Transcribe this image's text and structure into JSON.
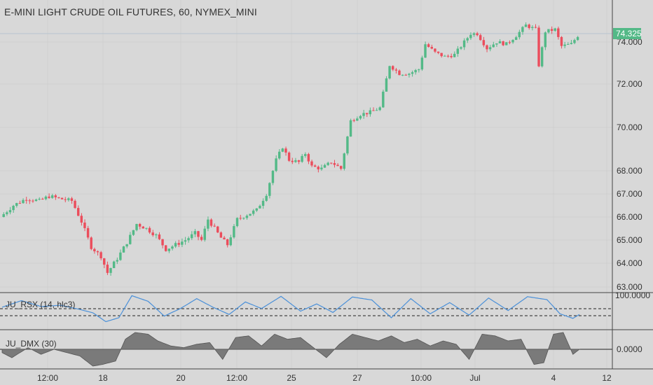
{
  "title": "E-MINI LIGHT CRUDE OIL FUTURES, 60, NYMEX_MINI",
  "colors": {
    "background": "#d8d8d8",
    "up": "#53b987",
    "down": "#eb4d5c",
    "rsx_line": "#4a90d9",
    "dmx_fill": "#7a7a7a",
    "last_price_badge": "#53b987",
    "axis_text": "#333333",
    "separator": "#444444"
  },
  "chart_data": [
    {
      "type": "candlestick",
      "title": "E-MINI LIGHT CRUDE OIL FUTURES, 60, NYMEX_MINI",
      "last_price": "74.325",
      "yticks": [
        "74.000",
        "72.000",
        "70.000",
        "68.000",
        "67.000",
        "66.000",
        "65.000",
        "64.000",
        "63.000"
      ],
      "ylim": [
        62.9,
        76.2
      ],
      "x_labels": [
        "12:00",
        "18",
        "20",
        "12:00",
        "25",
        "27",
        "10:00",
        "Jul",
        "4",
        "12"
      ],
      "close_path": [
        [
          0,
          66.0
        ],
        [
          4,
          66.5
        ],
        [
          8,
          66.8
        ],
        [
          12,
          66.7
        ],
        [
          15,
          66.9
        ],
        [
          18,
          66.8
        ],
        [
          22,
          66.7
        ],
        [
          25,
          65.8
        ],
        [
          28,
          64.7
        ],
        [
          31,
          64.3
        ],
        [
          33,
          63.6
        ],
        [
          36,
          64.2
        ],
        [
          39,
          64.9
        ],
        [
          42,
          65.7
        ],
        [
          45,
          65.5
        ],
        [
          48,
          65.2
        ],
        [
          51,
          64.6
        ],
        [
          54,
          64.8
        ],
        [
          57,
          65.0
        ],
        [
          60,
          65.3
        ],
        [
          62,
          65.0
        ],
        [
          64,
          65.9
        ],
        [
          66,
          65.5
        ],
        [
          68,
          65.1
        ],
        [
          70,
          64.8
        ],
        [
          73,
          65.9
        ],
        [
          76,
          66.1
        ],
        [
          79,
          66.3
        ],
        [
          82,
          67.0
        ],
        [
          85,
          68.5
        ],
        [
          87,
          69.1
        ],
        [
          89,
          68.5
        ],
        [
          92,
          68.4
        ],
        [
          94,
          68.8
        ],
        [
          96,
          68.2
        ],
        [
          99,
          68.1
        ],
        [
          102,
          68.4
        ],
        [
          105,
          68.1
        ],
        [
          108,
          70.3
        ],
        [
          111,
          70.6
        ],
        [
          114,
          70.7
        ],
        [
          117,
          70.9
        ],
        [
          120,
          72.9
        ],
        [
          123,
          72.5
        ],
        [
          126,
          72.5
        ],
        [
          129,
          72.7
        ],
        [
          131,
          73.9
        ],
        [
          134,
          73.5
        ],
        [
          137,
          73.3
        ],
        [
          140,
          73.4
        ],
        [
          143,
          74.0
        ],
        [
          145,
          74.4
        ],
        [
          147,
          74.4
        ],
        [
          150,
          73.7
        ],
        [
          153,
          74.0
        ],
        [
          156,
          73.9
        ],
        [
          159,
          74.3
        ],
        [
          162,
          74.8
        ],
        [
          165,
          74.6
        ],
        [
          166,
          72.9
        ],
        [
          168,
          74.5
        ],
        [
          171,
          74.6
        ],
        [
          173,
          73.8
        ],
        [
          176,
          73.9
        ],
        [
          178,
          74.3
        ]
      ],
      "candle_count": 178
    },
    {
      "type": "line",
      "label": "JU_RSX (14, hlc3)",
      "ytick": "100.0000",
      "levels": [
        "upper",
        "lower"
      ],
      "series": [
        {
          "name": "RSX",
          "x": [
            0,
            6,
            12,
            18,
            24,
            28,
            32,
            36,
            40,
            45,
            50,
            55,
            60,
            65,
            70,
            75,
            80,
            86,
            92,
            97,
            102,
            108,
            114,
            120,
            126,
            132,
            138,
            144,
            150,
            156,
            162,
            168,
            172,
            176,
            178
          ],
          "values": [
            62,
            82,
            64,
            68,
            55,
            45,
            18,
            30,
            97,
            80,
            35,
            58,
            88,
            62,
            40,
            78,
            58,
            95,
            50,
            72,
            46,
            93,
            84,
            30,
            88,
            42,
            76,
            38,
            90,
            52,
            94,
            85,
            42,
            28,
            40
          ]
        }
      ]
    },
    {
      "type": "area",
      "label": "JU_DMX (30)",
      "ytick": "0.0000",
      "series": [
        {
          "name": "DMX",
          "x": [
            0,
            3,
            8,
            12,
            16,
            20,
            24,
            28,
            31,
            35,
            38,
            41,
            45,
            48,
            52,
            56,
            60,
            64,
            68,
            72,
            76,
            80,
            84,
            88,
            92,
            96,
            100,
            104,
            108,
            112,
            116,
            120,
            124,
            128,
            132,
            136,
            140,
            144,
            148,
            152,
            156,
            160,
            164,
            167,
            170,
            173,
            176,
            178
          ],
          "values": [
            -0.2,
            -0.5,
            0.1,
            -0.3,
            0.0,
            -0.2,
            -0.4,
            -1.0,
            -0.9,
            -0.7,
            0.6,
            1.0,
            0.9,
            0.5,
            0.2,
            0.1,
            0.3,
            0.4,
            -0.6,
            0.7,
            0.8,
            0.2,
            0.9,
            0.6,
            0.7,
            0.1,
            -0.5,
            0.3,
            0.9,
            0.7,
            0.5,
            0.8,
            0.4,
            0.6,
            0.2,
            0.5,
            0.3,
            -0.6,
            0.9,
            0.8,
            0.5,
            0.6,
            -0.9,
            -0.8,
            0.9,
            1.0,
            -0.3,
            0.0
          ]
        }
      ]
    }
  ]
}
